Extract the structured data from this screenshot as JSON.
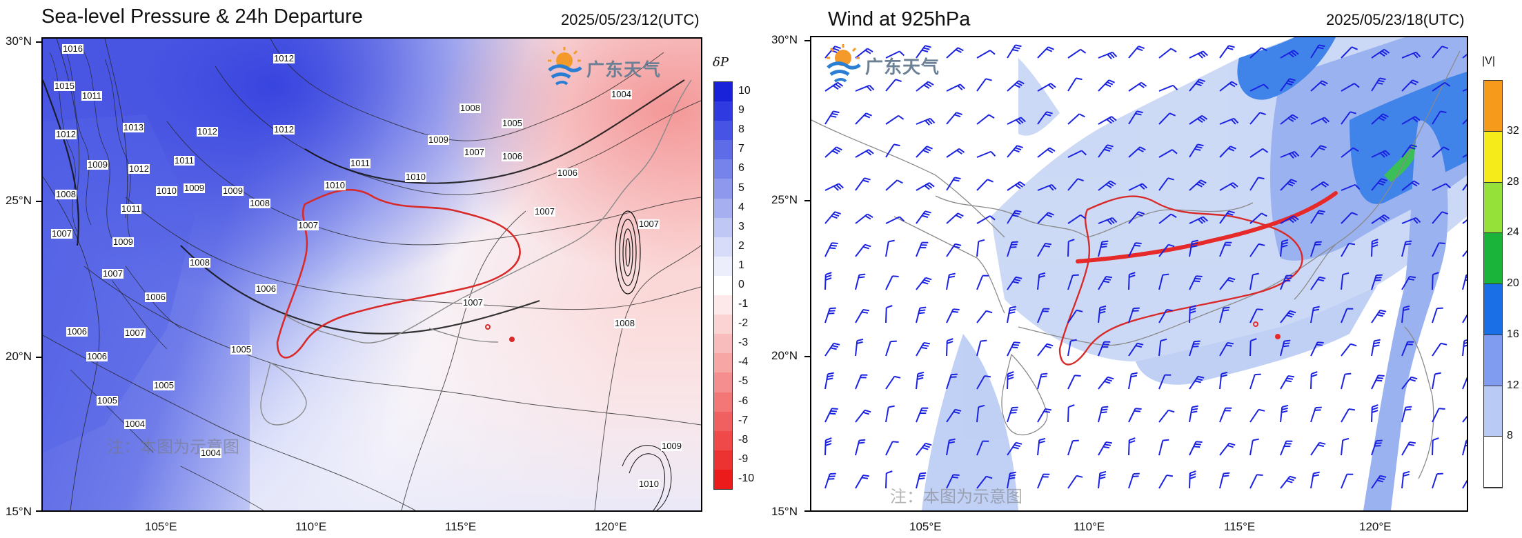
{
  "left_panel": {
    "title": "Sea-level Pressure & 24h Departure",
    "timestamp": "2025/05/23/12(UTC)",
    "colorbar_title": "δP",
    "colorbar_levels": [
      "10",
      "9",
      "8",
      "7",
      "6",
      "5",
      "4",
      "3",
      "2",
      "1",
      "0",
      "-1",
      "-2",
      "-3",
      "-4",
      "-5",
      "-6",
      "-7",
      "-8",
      "-9",
      "-10"
    ],
    "colorbar_colors": [
      "#1a22d9",
      "#2f3ae0",
      "#4653e4",
      "#5e6ce8",
      "#7683eb",
      "#8e99ee",
      "#a6b0f1",
      "#bfc7f5",
      "#d7dcf9",
      "#eceefc",
      "#ffffff",
      "#fde9e9",
      "#fbd3d3",
      "#f9bcbc",
      "#f7a5a5",
      "#f58e8e",
      "#f37777",
      "#f16060",
      "#ef4949",
      "#ed3232",
      "#eb1b1b"
    ],
    "isobar_labels": [
      "1016",
      "1012",
      "1015",
      "1011",
      "1012",
      "1013",
      "1012",
      "1012",
      "1009",
      "1012",
      "1011",
      "1008",
      "1010",
      "1009",
      "1009",
      "1008",
      "1011",
      "1007",
      "1009",
      "1008",
      "1007",
      "1006",
      "1005",
      "1006",
      "1006",
      "1007",
      "1005",
      "1005",
      "1004",
      "1004",
      "1006",
      "1007",
      "1008",
      "1010",
      "1010",
      "1011",
      "1009",
      "1007",
      "1006",
      "1005",
      "1006",
      "1007",
      "1004",
      "1007",
      "1007",
      "1008",
      "1009",
      "1010"
    ],
    "lat_labels": [
      "30°N",
      "25°N",
      "20°N",
      "15°N"
    ],
    "lon_labels": [
      "105°E",
      "110°E",
      "115°E",
      "120°E"
    ],
    "logo_text": "广东天气",
    "watermark": "注：本图为示意图"
  },
  "right_panel": {
    "title": "Wind at 925hPa",
    "timestamp": "2025/05/23/18(UTC)",
    "colorbar_title": "|V|",
    "colorbar_levels": [
      "32",
      "28",
      "24",
      "20",
      "16",
      "12",
      "8"
    ],
    "colorbar_colors": [
      "#f59a1a",
      "#f5ea1a",
      "#96e03a",
      "#1ab43a",
      "#1a6ee6",
      "#7f9cf0",
      "#b9cbf4",
      "#ffffff"
    ],
    "lat_labels": [
      "30°N",
      "25°N",
      "20°N",
      "15°N"
    ],
    "lon_labels": [
      "105°E",
      "110°E",
      "115°E",
      "120°E"
    ],
    "logo_text": "广东天气",
    "watermark": "注：本图为示意图"
  }
}
